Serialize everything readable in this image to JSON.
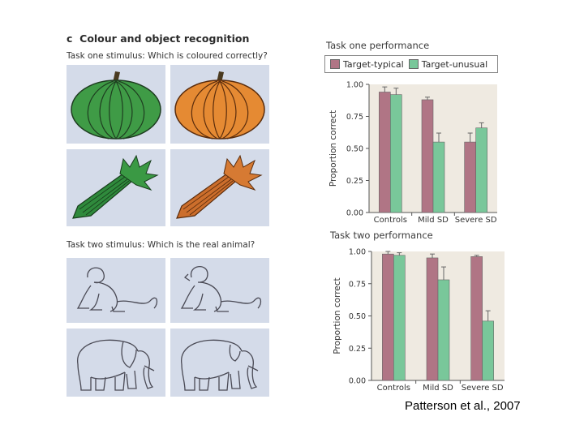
{
  "figure": {
    "panel_letter": "c",
    "panel_title": "Colour and object recognition",
    "task_one_stimulus": "Task one stimulus: Which is coloured correctly?",
    "task_two_stimulus": "Task two stimulus: Which is the real animal?"
  },
  "citation": "Patterson et al., 2007",
  "colors": {
    "typical": "#b07585",
    "unusual": "#79c79a",
    "chart_bg": "#efeae1",
    "tile_bg": "#d4dbe9"
  },
  "chart_data": [
    {
      "type": "bar",
      "title": "Task one performance",
      "ylabel": "Proportion correct",
      "categories": [
        "Controls",
        "Mild SD",
        "Severe SD"
      ],
      "yticks": [
        "0.00",
        "0.25",
        "0.50",
        "0.75",
        "1.00"
      ],
      "ylim": [
        0,
        1
      ],
      "series": [
        {
          "name": "Target-typical",
          "values": [
            0.94,
            0.88,
            0.55
          ],
          "errors": [
            0.04,
            0.02,
            0.07
          ]
        },
        {
          "name": "Target-unusual",
          "values": [
            0.92,
            0.55,
            0.66
          ],
          "errors": [
            0.05,
            0.07,
            0.04
          ]
        }
      ],
      "legend": "top"
    },
    {
      "type": "bar",
      "title": "Task two performance",
      "ylabel": "Proportion correct",
      "categories": [
        "Controls",
        "Mild SD",
        "Severe SD"
      ],
      "yticks": [
        "0.00",
        "0.25",
        "0.50",
        "0.75",
        "1.00"
      ],
      "ylim": [
        0,
        1
      ],
      "series": [
        {
          "name": "Target-typical",
          "values": [
            0.98,
            0.95,
            0.96
          ],
          "errors": [
            0.02,
            0.03,
            0.01
          ]
        },
        {
          "name": "Target-unusual",
          "values": [
            0.97,
            0.78,
            0.46
          ],
          "errors": [
            0.02,
            0.1,
            0.08
          ]
        }
      ]
    }
  ]
}
